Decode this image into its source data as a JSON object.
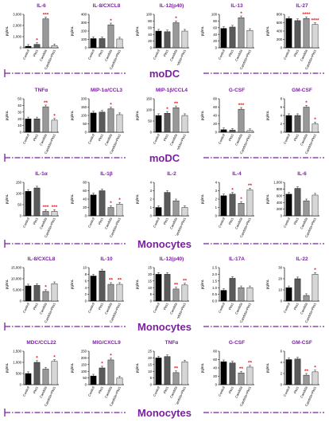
{
  "colors": {
    "title": "#7a1fa2",
    "star": "#e0191e",
    "grid_line": "#7a1fa2",
    "bar_fills": [
      "#000000",
      "#5a5a5a",
      "#999999",
      "#d6d6d6"
    ]
  },
  "sections": [
    "moDC",
    "moDC",
    "Monocytes",
    "Monocytes",
    "Monocytes"
  ],
  "chart_data": [
    {
      "type": "bar",
      "title": "IL-6",
      "ylabel": "pg/mL",
      "categories": [
        "Control",
        "Pks1",
        "Candida",
        "Candida+Pks1"
      ],
      "values": [
        140,
        300,
        2600,
        190
      ],
      "ylim": [
        0,
        3000
      ],
      "ticks": [
        "0",
        "1,000",
        "2,000",
        "3,000"
      ],
      "stars": [
        "",
        "*",
        "***",
        ""
      ]
    },
    {
      "type": "bar",
      "title": "IL-8/CXCL8",
      "ylabel": "pg/mL",
      "categories": [
        "Control",
        "Pks1",
        "Candida",
        "Candida+Pks1"
      ],
      "values": [
        110,
        110,
        275,
        105
      ],
      "ylim": [
        0,
        400
      ],
      "ticks": [
        "0",
        "100",
        "200",
        "300",
        "400"
      ],
      "stars": [
        "",
        "",
        "*",
        ""
      ]
    },
    {
      "type": "bar",
      "title": "IL-12(p40)",
      "ylabel": "pg/mL",
      "categories": [
        "Control",
        "Pks1",
        "Candida",
        "Candida+Pks1"
      ],
      "values": [
        50,
        48,
        75,
        50
      ],
      "ylim": [
        0,
        100
      ],
      "ticks": [
        "0",
        "20",
        "40",
        "60",
        "80",
        "100"
      ],
      "stars": [
        "",
        "",
        "*",
        ""
      ]
    },
    {
      "type": "bar",
      "title": "IL-13",
      "ylabel": "pg/mL",
      "categories": [
        "Control",
        "Pks1",
        "Candida",
        "Candida+Pks1"
      ],
      "values": [
        58,
        62,
        90,
        52
      ],
      "ylim": [
        0,
        100
      ],
      "ticks": [
        "0",
        "20",
        "40",
        "60",
        "80",
        "100"
      ],
      "stars": [
        "",
        "",
        "*",
        ""
      ]
    },
    {
      "type": "bar",
      "title": "IL-27",
      "ylabel": "pg/mL",
      "categories": [
        "Control",
        "Pks1",
        "Candida",
        "Candida+Pks1"
      ],
      "values": [
        700,
        650,
        700,
        560
      ],
      "ylim": [
        0,
        800
      ],
      "ticks": [
        "0",
        "200",
        "400",
        "600",
        "800"
      ],
      "stars": [
        "",
        "",
        "****",
        "****"
      ]
    },
    {
      "type": "bar",
      "title": "TNFα",
      "ylabel": "pg/mL",
      "categories": [
        "Control",
        "Pks1",
        "Candida",
        "Candida+Pks1"
      ],
      "values": [
        20,
        20,
        38,
        18
      ],
      "ylim": [
        0,
        50
      ],
      "ticks": [
        "0",
        "10",
        "20",
        "30",
        "40",
        "50"
      ],
      "stars": [
        "",
        "",
        "**",
        "*"
      ]
    },
    {
      "type": "bar",
      "title": "MIP-1α/CCL3",
      "ylabel": "pg/mL",
      "categories": [
        "Control",
        "Pks1",
        "Candida",
        "Candida+Pks1"
      ],
      "values": [
        115,
        120,
        140,
        105
      ],
      "ylim": [
        0,
        200
      ],
      "ticks": [
        "0",
        "50",
        "100",
        "150",
        "200"
      ],
      "stars": [
        "",
        "",
        "*",
        ""
      ]
    },
    {
      "type": "bar",
      "title": "MIP-1β/CCL4",
      "ylabel": "pg/mL",
      "categories": [
        "Control",
        "Pks1",
        "Candida",
        "Candida+Pks1"
      ],
      "values": [
        75,
        85,
        110,
        75
      ],
      "ylim": [
        0,
        150
      ],
      "ticks": [
        "0",
        "50",
        "100",
        "150"
      ],
      "stars": [
        "",
        "*",
        "**",
        ""
      ]
    },
    {
      "type": "bar",
      "title": "G-CSF",
      "ylabel": "pg/mL",
      "categories": [
        "Control",
        "Pks1",
        "Candida",
        "Candida+Pks1"
      ],
      "values": [
        6,
        5,
        55,
        4
      ],
      "ylim": [
        0,
        80
      ],
      "ticks": [
        "0",
        "20",
        "40",
        "60",
        "80"
      ],
      "stars": [
        "",
        "",
        "***",
        ""
      ]
    },
    {
      "type": "bar",
      "title": "GM-CSF",
      "ylabel": "pg/mL",
      "categories": [
        "Control",
        "Pks1",
        "Candida",
        "Candida+Pks1"
      ],
      "values": [
        4,
        4,
        6,
        2
      ],
      "ylim": [
        0,
        8
      ],
      "ticks": [
        "0",
        "2",
        "4",
        "6",
        "8"
      ],
      "stars": [
        "",
        "",
        "*",
        "*"
      ]
    },
    {
      "type": "bar",
      "title": "IL-1α",
      "ylabel": "pg/mL",
      "categories": [
        "Control",
        "Pks1",
        "Candida",
        "Candida+Pks1"
      ],
      "values": [
        110,
        125,
        20,
        20
      ],
      "ylim": [
        0,
        150
      ],
      "ticks": [
        "0",
        "50",
        "100",
        "150"
      ],
      "stars": [
        "",
        "",
        "***",
        "***"
      ]
    },
    {
      "type": "bar",
      "title": "IL-1β",
      "ylabel": "pg/mL",
      "categories": [
        "Control",
        "Pks1",
        "Candida",
        "Candida+Pks1"
      ],
      "values": [
        50,
        60,
        20,
        28
      ],
      "ylim": [
        0,
        80
      ],
      "ticks": [
        "0",
        "20",
        "40",
        "60",
        "80"
      ],
      "stars": [
        "",
        "",
        "*",
        "*"
      ]
    },
    {
      "type": "bar",
      "title": "IL-2",
      "ylabel": "pg/mL",
      "categories": [
        "Control",
        "Pks1",
        "Candida",
        "Candida+Pks1"
      ],
      "values": [
        1,
        2.8,
        1.8,
        1
      ],
      "ylim": [
        0,
        4
      ],
      "ticks": [
        "0",
        "1",
        "2",
        "3",
        "4"
      ],
      "stars": [
        "",
        "",
        "",
        ""
      ]
    },
    {
      "type": "bar",
      "title": "IL-4",
      "ylabel": "pg/mL",
      "categories": [
        "Control",
        "Pks1",
        "Candida",
        "Candida+Pks1"
      ],
      "values": [
        2.4,
        2.6,
        1.5,
        3.1
      ],
      "ylim": [
        0,
        4
      ],
      "ticks": [
        "0",
        "1",
        "2",
        "3",
        "4"
      ],
      "stars": [
        "",
        "*",
        "*",
        "**"
      ]
    },
    {
      "type": "bar",
      "title": "IL-6",
      "ylabel": "pg/mL",
      "categories": [
        "Control",
        "Pks1",
        "Candida",
        "Candida+Pks1"
      ],
      "values": [
        650,
        820,
        450,
        620
      ],
      "ylim": [
        0,
        1000
      ],
      "ticks": [
        "0",
        "200",
        "400",
        "600",
        "800",
        "1,000"
      ],
      "stars": [
        "",
        "",
        "",
        ""
      ]
    },
    {
      "type": "bar",
      "title": "IL-8/CXCL8",
      "ylabel": "pg/mL",
      "categories": [
        "Control",
        "Pks1",
        "Candida",
        "Candida+Pks1"
      ],
      "values": [
        6800,
        7000,
        4300,
        7800
      ],
      "ylim": [
        0,
        15000
      ],
      "ticks": [
        "0",
        "5,000",
        "10,000",
        "15,000"
      ],
      "stars": [
        "",
        "",
        "*",
        ""
      ]
    },
    {
      "type": "bar",
      "title": "IL-10",
      "ylabel": "pg/mL",
      "categories": [
        "Control",
        "Pks1",
        "Candida",
        "Candida+Pks1"
      ],
      "values": [
        7.5,
        9,
        5,
        5
      ],
      "ylim": [
        0,
        10
      ],
      "ticks": [
        "0",
        "2",
        "4",
        "6",
        "8",
        "10"
      ],
      "stars": [
        "",
        "",
        "**",
        "**"
      ]
    },
    {
      "type": "bar",
      "title": "IL-12(p40)",
      "ylabel": "pg/mL",
      "categories": [
        "Control",
        "Pks1",
        "Candida",
        "Candida+Pks1"
      ],
      "values": [
        20,
        20,
        9,
        12
      ],
      "ylim": [
        0,
        25
      ],
      "ticks": [
        "0",
        "5",
        "10",
        "15",
        "20",
        "25"
      ],
      "stars": [
        "",
        "",
        "**",
        "**"
      ]
    },
    {
      "type": "bar",
      "title": "IL-17A",
      "ylabel": "pg/mL",
      "categories": [
        "Control",
        "Pks1",
        "Candida",
        "Candida+Pks1"
      ],
      "values": [
        0.8,
        1.7,
        1.0,
        1.0
      ],
      "ylim": [
        0,
        2.5
      ],
      "ticks": [
        "0.0",
        "0.5",
        "1.0",
        "1.5",
        "2.0",
        "2.5"
      ],
      "stars": [
        "",
        "",
        "",
        ""
      ]
    },
    {
      "type": "bar",
      "title": "IL-22",
      "ylabel": "pg/mL",
      "categories": [
        "Control",
        "Pks1",
        "Candida",
        "Candida+Pks1"
      ],
      "values": [
        12,
        20,
        5,
        24
      ],
      "ylim": [
        0,
        30
      ],
      "ticks": [
        "0",
        "10",
        "20",
        "30"
      ],
      "stars": [
        "",
        "",
        "",
        "*"
      ]
    },
    {
      "type": "bar",
      "title": "MDC/CCL22",
      "ylabel": "pg/mL",
      "categories": [
        "Control",
        "Pks1",
        "Candida",
        "Candida+Pks1"
      ],
      "values": [
        500,
        1000,
        700,
        1050
      ],
      "ylim": [
        0,
        1500
      ],
      "ticks": [
        "0",
        "500",
        "1,000",
        "1,500"
      ],
      "stars": [
        "",
        "*",
        "",
        "*"
      ]
    },
    {
      "type": "bar",
      "title": "MIG/CXCL9",
      "ylabel": "pg/mL",
      "categories": [
        "Control",
        "Pks1",
        "Candida",
        "Candida+Pks1"
      ],
      "values": [
        65,
        125,
        185,
        50
      ],
      "ylim": [
        0,
        250
      ],
      "ticks": [
        "0",
        "50",
        "100",
        "150",
        "200",
        "250"
      ],
      "stars": [
        "",
        "*",
        "*",
        ""
      ]
    },
    {
      "type": "bar",
      "title": "TNFα",
      "ylabel": "pg/mL",
      "categories": [
        "Control",
        "Pks1",
        "Candida",
        "Candida+Pks1"
      ],
      "values": [
        20,
        21,
        9,
        17
      ],
      "ylim": [
        0,
        25
      ],
      "ticks": [
        "0",
        "5",
        "10",
        "15",
        "20",
        "25"
      ],
      "stars": [
        "",
        "",
        "**",
        ""
      ]
    },
    {
      "type": "bar",
      "title": "G-CSF",
      "ylabel": "pg/mL",
      "categories": [
        "Control",
        "Pks1",
        "Candida",
        "Candida+Pks1"
      ],
      "values": [
        55,
        52,
        28,
        42
      ],
      "ylim": [
        0,
        80
      ],
      "ticks": [
        "0",
        "20",
        "40",
        "60",
        "80"
      ],
      "stars": [
        "",
        "",
        "**",
        "**"
      ]
    },
    {
      "type": "bar",
      "title": "GM-CSF",
      "ylabel": "pg/mL",
      "categories": [
        "Control",
        "Pks1",
        "Candida",
        "Candida+Pks1"
      ],
      "values": [
        4.5,
        4.6,
        1.7,
        2.3
      ],
      "ylim": [
        0,
        6
      ],
      "ticks": [
        "0",
        "2",
        "4",
        "6"
      ],
      "stars": [
        "",
        "",
        "**",
        "*"
      ]
    }
  ]
}
